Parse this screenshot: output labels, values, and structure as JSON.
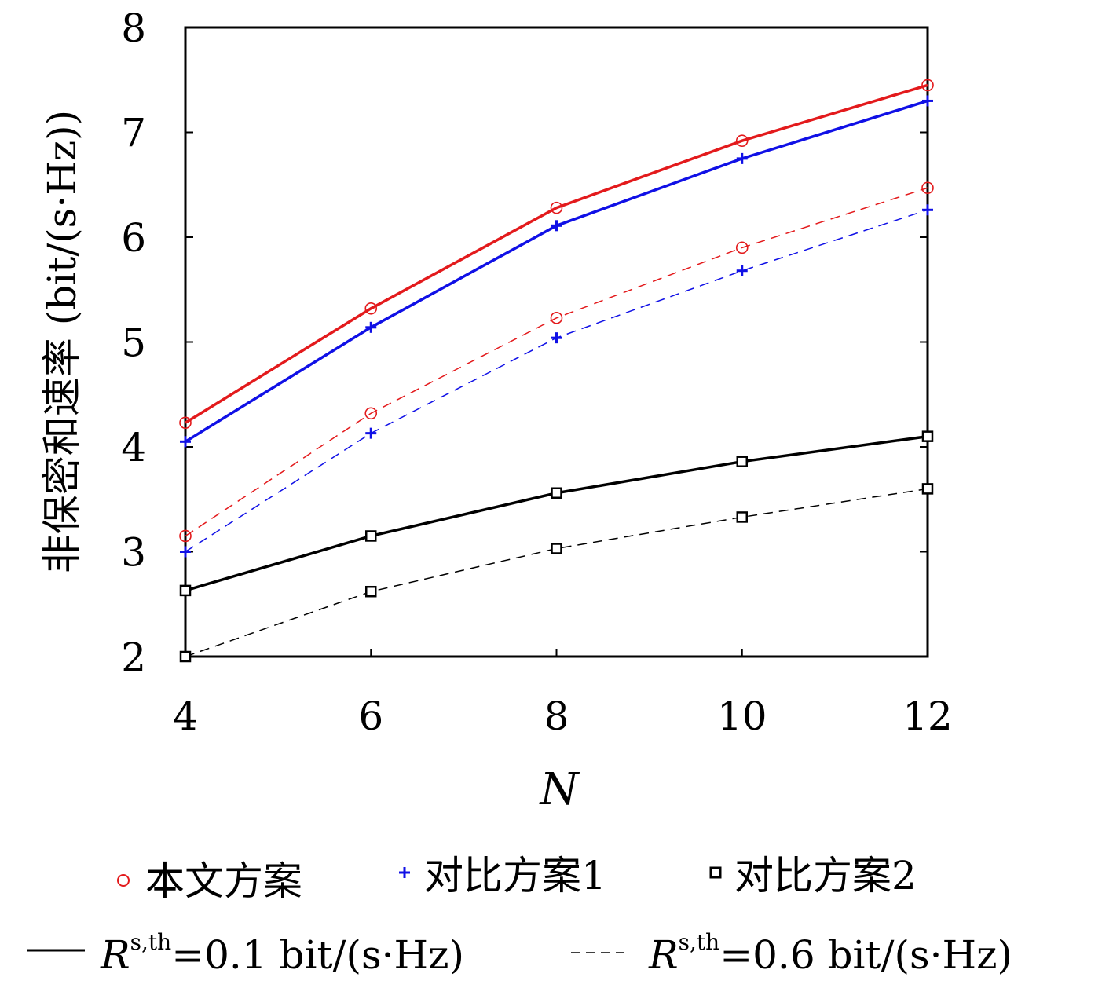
{
  "chart_data": {
    "type": "line",
    "xlabel": "N",
    "ylabel": "非保密和速率 (bit/(s·Hz))",
    "x": [
      4,
      6,
      8,
      10,
      12
    ],
    "xlim": [
      4,
      12
    ],
    "ylim": [
      2,
      8
    ],
    "xticks": [
      4,
      6,
      8,
      10,
      12
    ],
    "yticks": [
      2,
      3,
      4,
      5,
      6,
      7,
      8
    ],
    "grid": false,
    "legend_position": "bottom",
    "series": [
      {
        "name": "本文方案",
        "threshold": "0.1",
        "color": "#e31a1c",
        "marker": "circle",
        "line": "solid",
        "values": [
          4.23,
          5.32,
          6.28,
          6.92,
          7.45
        ]
      },
      {
        "name": "对比方案1",
        "threshold": "0.1",
        "color": "#1010e6",
        "marker": "plus",
        "line": "solid",
        "values": [
          4.05,
          5.14,
          6.11,
          6.75,
          7.3
        ]
      },
      {
        "name": "对比方案2",
        "threshold": "0.1",
        "color": "#000000",
        "marker": "square",
        "line": "solid",
        "values": [
          2.63,
          3.15,
          3.56,
          3.86,
          4.1
        ]
      },
      {
        "name": "本文方案",
        "threshold": "0.6",
        "color": "#e31a1c",
        "marker": "circle",
        "line": "dashed",
        "values": [
          3.15,
          4.32,
          5.23,
          5.9,
          6.47
        ]
      },
      {
        "name": "对比方案1",
        "threshold": "0.6",
        "color": "#1010e6",
        "marker": "plus",
        "line": "dashed",
        "values": [
          3.0,
          4.13,
          5.04,
          5.68,
          6.26
        ]
      },
      {
        "name": "对比方案2",
        "threshold": "0.6",
        "color": "#000000",
        "marker": "square",
        "line": "dashed",
        "values": [
          2.0,
          2.62,
          3.03,
          3.33,
          3.6
        ]
      }
    ]
  },
  "legend": {
    "schemes": [
      {
        "label": "本文方案",
        "marker": "circle",
        "color": "#e31a1c"
      },
      {
        "label": "对比方案1",
        "marker": "plus",
        "color": "#1010e6"
      },
      {
        "label": "对比方案2",
        "marker": "square",
        "color": "#000000"
      }
    ],
    "lines": [
      {
        "symbol": "R",
        "sup": "s,th",
        "text": "=0.1 bit/(s·Hz)",
        "style": "solid"
      },
      {
        "symbol": "R",
        "sup": "s,th",
        "text": "=0.6 bit/(s·Hz)",
        "style": "dashed"
      }
    ]
  }
}
